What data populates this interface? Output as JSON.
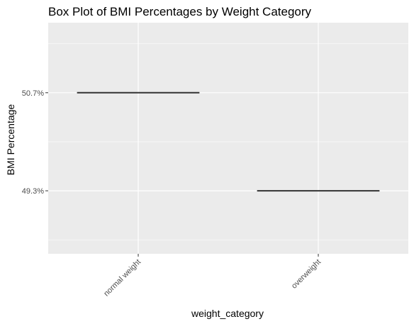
{
  "chart_data": {
    "type": "box",
    "title": "Box Plot of BMI Percentages by Weight Category",
    "xlabel": "weight_category",
    "ylabel": "BMI Percentage",
    "categories": [
      "normal weight",
      "overweight"
    ],
    "values": [
      50.7,
      49.3
    ],
    "y_ticks": [
      49.3,
      50.7
    ],
    "y_tick_labels": [
      "49.3%",
      "50.7%"
    ],
    "ylim": [
      48.4,
      51.7
    ],
    "grid": true,
    "legend": "none",
    "colors": {
      "panel": "#ebebeb",
      "grid": "#ffffff",
      "box": "#333333"
    }
  }
}
